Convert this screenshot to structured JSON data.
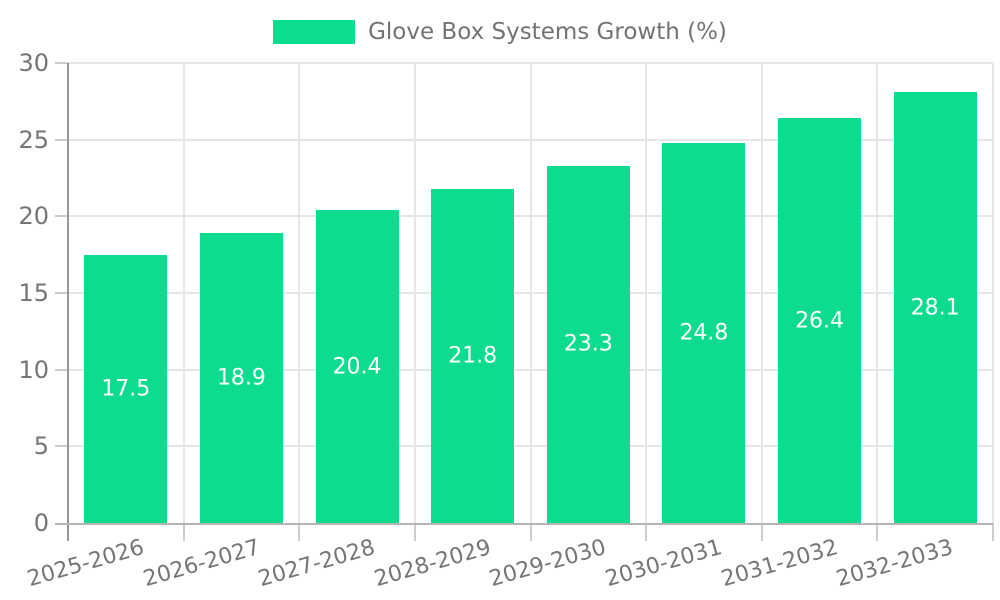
{
  "legend": {
    "label": "Glove Box Systems Growth (%)"
  },
  "chart_data": {
    "type": "bar",
    "title": "",
    "categories": [
      "2025-2026",
      "2026-2027",
      "2027-2028",
      "2028-2029",
      "2029-2030",
      "2030-2031",
      "2031-2032",
      "2032-2033"
    ],
    "series": [
      {
        "name": "Glove Box Systems Growth (%)",
        "values": [
          17.5,
          18.9,
          20.4,
          21.8,
          23.3,
          24.8,
          26.4,
          28.1
        ]
      }
    ],
    "value_labels": [
      "17.5",
      "18.9",
      "20.4",
      "21.8",
      "23.3",
      "24.8",
      "26.4",
      "28.1"
    ],
    "ylim": [
      0,
      30
    ],
    "yticks": [
      0,
      5,
      10,
      15,
      20,
      25,
      30
    ],
    "grid": true,
    "legend_position": "top",
    "colors": {
      "bar": "#0ddc8e",
      "value_label": "#ffffff",
      "tick_label": "#757575",
      "legend_text": "#737373",
      "y_axis_line": "#969696",
      "x_axis_line": "#b4b4b4",
      "gridline": "#e6e6e6",
      "tick_mark": "#cccccc"
    }
  }
}
